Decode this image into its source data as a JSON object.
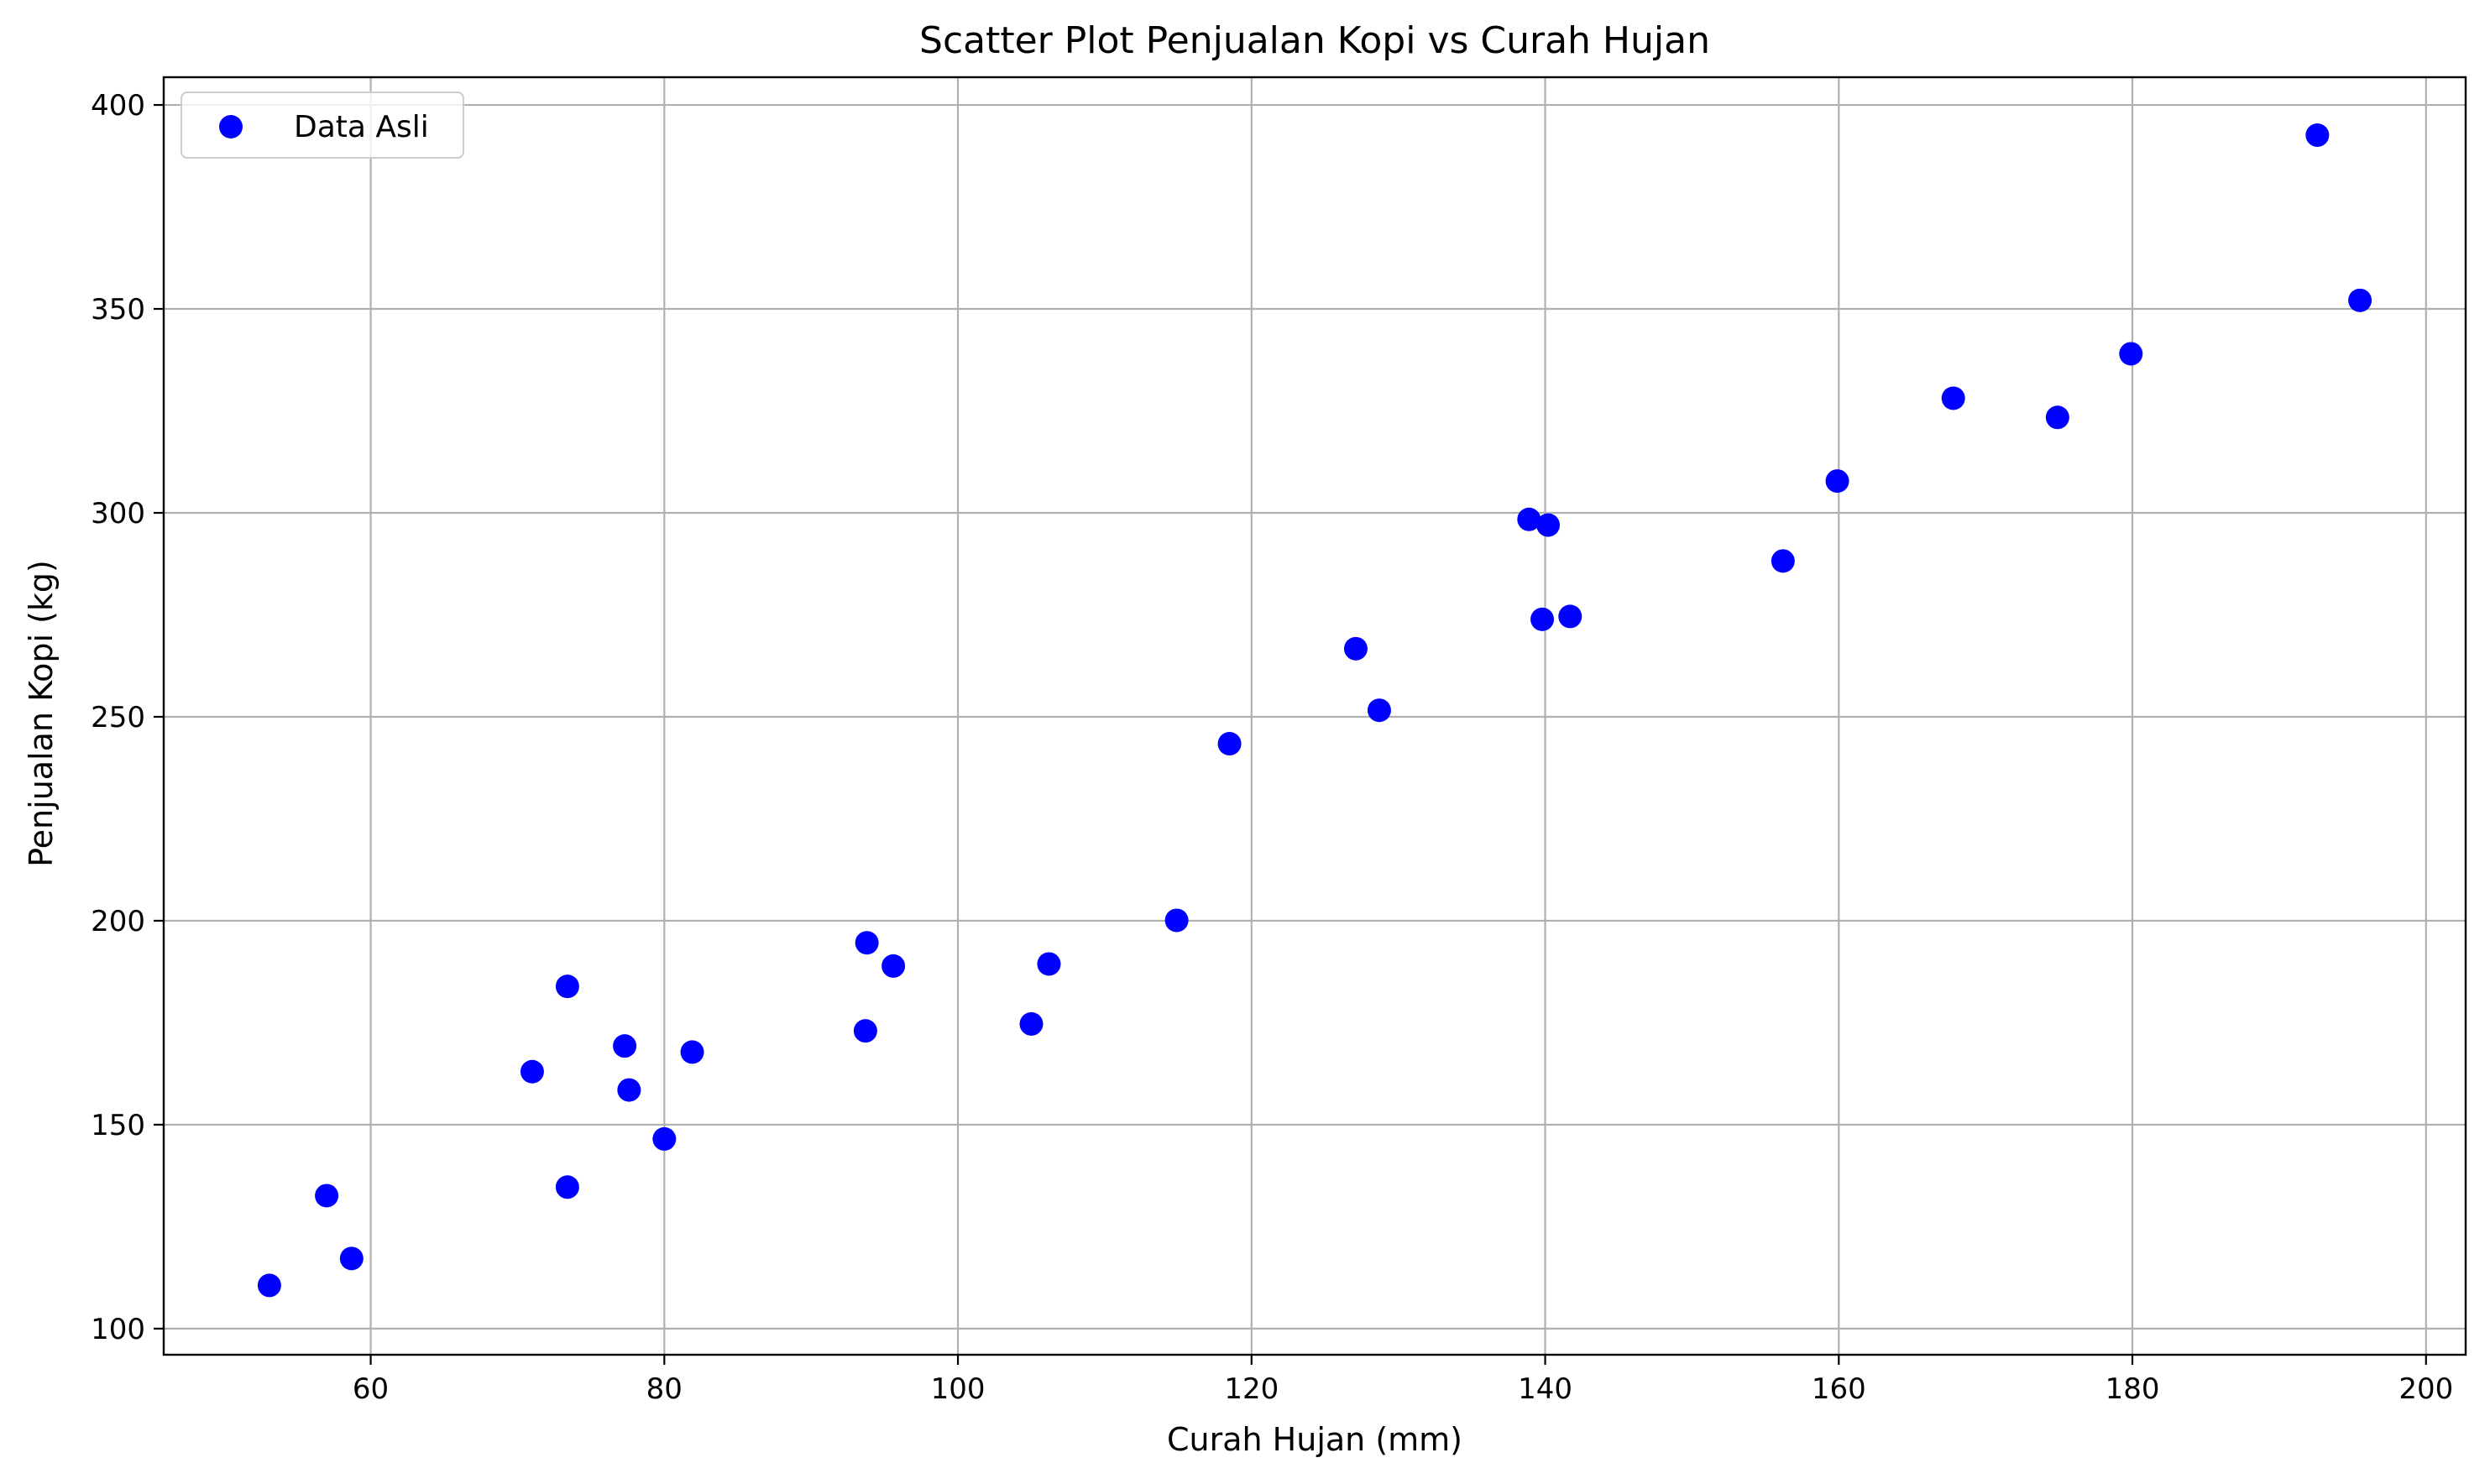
{
  "chart_data": {
    "type": "scatter",
    "title": "Scatter Plot Penjualan Kopi vs Curah Hujan",
    "xlabel": "Curah Hujan (mm)",
    "ylabel": "Penjualan Kopi (kg)",
    "xlim": [
      45.9,
      202.7
    ],
    "ylim": [
      93.6,
      406.8
    ],
    "xticks": [
      60,
      80,
      100,
      120,
      140,
      160,
      180,
      200
    ],
    "yticks": [
      100,
      150,
      200,
      250,
      300,
      350,
      400
    ],
    "grid": true,
    "legend_position": "top-left",
    "marker_color": "#0000ff",
    "grid_color": "#b0b0b0",
    "series": [
      {
        "name": "Data Asli",
        "points": [
          {
            "x": 53.1,
            "y": 110.6
          },
          {
            "x": 57.0,
            "y": 132.6
          },
          {
            "x": 58.7,
            "y": 117.2
          },
          {
            "x": 71.0,
            "y": 163.0
          },
          {
            "x": 73.4,
            "y": 183.9
          },
          {
            "x": 73.4,
            "y": 134.7
          },
          {
            "x": 77.3,
            "y": 169.3
          },
          {
            "x": 77.6,
            "y": 158.5
          },
          {
            "x": 80.0,
            "y": 146.5
          },
          {
            "x": 81.9,
            "y": 167.8
          },
          {
            "x": 93.7,
            "y": 173.0
          },
          {
            "x": 93.8,
            "y": 194.6
          },
          {
            "x": 95.6,
            "y": 188.9
          },
          {
            "x": 105.0,
            "y": 174.7
          },
          {
            "x": 106.2,
            "y": 189.4
          },
          {
            "x": 114.9,
            "y": 200.1
          },
          {
            "x": 118.5,
            "y": 243.4
          },
          {
            "x": 127.1,
            "y": 266.7
          },
          {
            "x": 128.7,
            "y": 251.6
          },
          {
            "x": 138.9,
            "y": 298.4
          },
          {
            "x": 139.8,
            "y": 273.9
          },
          {
            "x": 140.2,
            "y": 297.0
          },
          {
            "x": 141.7,
            "y": 274.6
          },
          {
            "x": 156.2,
            "y": 288.2
          },
          {
            "x": 159.9,
            "y": 307.8
          },
          {
            "x": 167.8,
            "y": 328.1
          },
          {
            "x": 174.9,
            "y": 323.4
          },
          {
            "x": 179.9,
            "y": 339.0
          },
          {
            "x": 192.6,
            "y": 392.6
          },
          {
            "x": 195.5,
            "y": 352.1
          }
        ]
      }
    ]
  }
}
